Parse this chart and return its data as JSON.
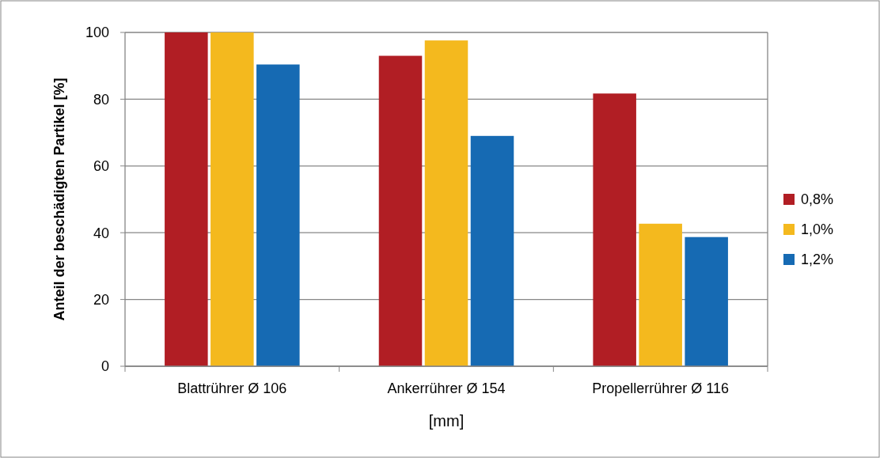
{
  "chart_data": {
    "type": "bar",
    "xlabel": "[mm]",
    "ylabel": "Anteil der beschädigten Partikel [%]",
    "categories": [
      "Blattrührer Ø 106",
      "Ankerrührer Ø 154",
      "Propellerrührer Ø 116"
    ],
    "series": [
      {
        "name": "0,8%",
        "color": "#b11e24",
        "values": [
          100,
          93,
          81.7
        ]
      },
      {
        "name": "1,0%",
        "color": "#f4b91e",
        "values": [
          100,
          97.6,
          42.7
        ]
      },
      {
        "name": "1,2%",
        "color": "#166ab3",
        "values": [
          90.4,
          69,
          38.7
        ]
      }
    ],
    "ylim": [
      0,
      100
    ],
    "yticks": [
      0,
      20,
      40,
      60,
      80,
      100
    ],
    "grid": "y",
    "legend": "right"
  }
}
